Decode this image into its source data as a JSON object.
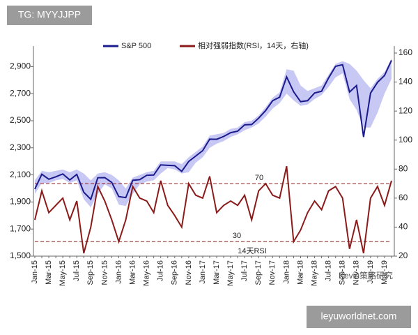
{
  "chart_data": {
    "type": "line",
    "categories": [
      "Jan-15",
      null,
      "Mar-15",
      null,
      "May-15",
      null,
      "Jul-15",
      null,
      "Sep-15",
      null,
      "Nov-15",
      null,
      "Jan-16",
      null,
      "Mar-16",
      null,
      "May-16",
      null,
      "Jul-16",
      null,
      "Sep-16",
      null,
      "Nov-16",
      null,
      "Jan-17",
      null,
      "Mar-17",
      null,
      "May-17",
      null,
      "Jul-17",
      null,
      "Sep-17",
      null,
      "Nov-17",
      null,
      "Jan-18",
      null,
      "Mar-18",
      null,
      "May-18",
      null,
      "Jul-18",
      null,
      "Sep-18",
      null,
      "Nov-18",
      null,
      "Jan-19",
      null,
      "Mar-19",
      null
    ],
    "series": [
      {
        "name": "S&P 500",
        "color": "#1a1a8c",
        "values": [
          1995,
          2105,
          2068,
          2086,
          2107,
          2063,
          2104,
          1972,
          1920,
          2079,
          2080,
          2044,
          1940,
          1932,
          2060,
          2065,
          2097,
          2099,
          2174,
          2171,
          2168,
          2126,
          2199,
          2239,
          2279,
          2364,
          2363,
          2384,
          2412,
          2423,
          2470,
          2472,
          2519,
          2575,
          2648,
          2674,
          2824,
          2714,
          2641,
          2648,
          2705,
          2718,
          2816,
          2902,
          2914,
          2712,
          2760,
          2380,
          2704,
          2784,
          2834,
          2946
        ]
      },
      {
        "name": "相对强弱指数(RSI，14天，右轴)",
        "color": "#8b1a1a",
        "axis": "y2",
        "values": [
          45,
          65,
          50,
          55,
          60,
          45,
          58,
          22,
          40,
          68,
          58,
          45,
          30,
          45,
          68,
          60,
          58,
          50,
          72,
          55,
          48,
          40,
          70,
          62,
          60,
          75,
          50,
          55,
          58,
          55,
          62,
          45,
          65,
          70,
          62,
          60,
          82,
          30,
          38,
          50,
          58,
          52,
          65,
          68,
          60,
          25,
          45,
          22,
          60,
          68,
          55,
          72
        ]
      }
    ],
    "band": {
      "color": "#c8c8f4",
      "upper": [
        2060,
        2130,
        2120,
        2130,
        2140,
        2120,
        2140,
        2110,
        2060,
        2110,
        2120,
        2100,
        2060,
        2000,
        2080,
        2100,
        2120,
        2130,
        2200,
        2200,
        2200,
        2180,
        2230,
        2270,
        2310,
        2390,
        2400,
        2410,
        2440,
        2450,
        2490,
        2500,
        2540,
        2600,
        2670,
        2710,
        2880,
        2870,
        2760,
        2720,
        2740,
        2760,
        2840,
        2920,
        2940,
        2920,
        2870,
        2800,
        2740,
        2810,
        2860,
        2960
      ],
      "lower": [
        1960,
        2040,
        2040,
        2060,
        2070,
        2040,
        2060,
        1920,
        1860,
        1960,
        2030,
        2000,
        1880,
        1870,
        1960,
        2030,
        2050,
        2060,
        2110,
        2150,
        2140,
        2110,
        2120,
        2190,
        2230,
        2300,
        2330,
        2350,
        2380,
        2400,
        2430,
        2450,
        2480,
        2530,
        2590,
        2630,
        2700,
        2650,
        2610,
        2620,
        2660,
        2690,
        2750,
        2820,
        2850,
        2660,
        2580,
        2450,
        2450,
        2560,
        2700,
        2810
      ]
    },
    "ylim": [
      1500,
      3000
    ],
    "yticks": [
      {
        "value": 1500,
        "label": "1,500"
      },
      {
        "value": 1700,
        "label": "1,700"
      },
      {
        "value": 1900,
        "label": "1,900"
      },
      {
        "value": 2100,
        "label": "2,100"
      },
      {
        "value": 2300,
        "label": "2,300"
      },
      {
        "value": 2500,
        "label": "2,500"
      },
      {
        "value": 2700,
        "label": "2,700"
      },
      {
        "value": 2900,
        "label": "2,900"
      }
    ],
    "y2lim": [
      20,
      160
    ],
    "y2ticks": [
      20,
      40,
      60,
      80,
      100,
      120,
      140,
      160
    ],
    "ref_lines": [
      70,
      30
    ],
    "ref_color": "#8b1a1a",
    "annotation": "14天RSI",
    "legend": "top"
  },
  "overlays": {
    "tag": "TG: MYYJJPP",
    "source": "Kevin策略研究",
    "site": "leyuworldnet.com"
  }
}
